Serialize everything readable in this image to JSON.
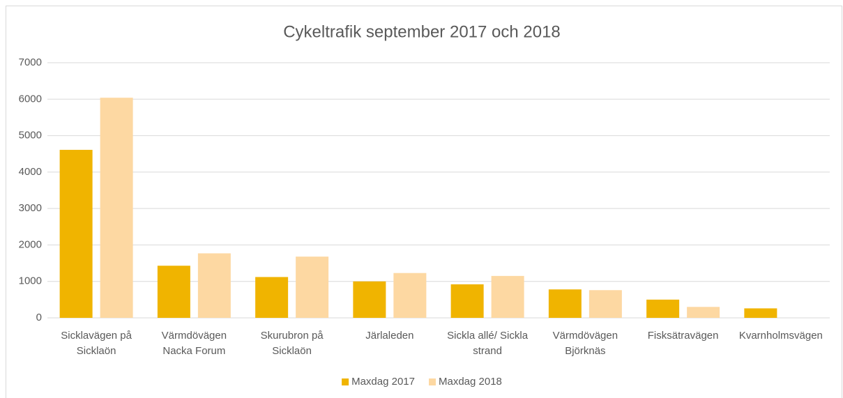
{
  "chart_data": {
    "type": "bar",
    "title": "Cykeltrafik september 2017 och 2018",
    "categories": [
      [
        "Sicklavägen på",
        "Sicklaön"
      ],
      [
        "Värmdövägen",
        "Nacka Forum"
      ],
      [
        "Skurubron på",
        "Sicklaön"
      ],
      [
        "Järlaleden"
      ],
      [
        "Sickla allé/ Sickla",
        "strand"
      ],
      [
        "Värmdövägen",
        "Björknäs"
      ],
      [
        "Fisksätravägen"
      ],
      [
        "Kvarnholmsvägen"
      ]
    ],
    "series": [
      {
        "name": "Maxdag 2017",
        "color": "#f0b400",
        "values": [
          4610,
          1430,
          1120,
          1000,
          920,
          780,
          500,
          260
        ]
      },
      {
        "name": "Maxdag 2018",
        "color": "#fdd8a2",
        "values": [
          6040,
          1770,
          1680,
          1230,
          1150,
          760,
          300,
          null
        ]
      }
    ],
    "ylim": [
      0,
      7000
    ],
    "yticks": [
      0,
      1000,
      2000,
      3000,
      4000,
      5000,
      6000,
      7000
    ],
    "grid": true,
    "legend": "bottom"
  }
}
